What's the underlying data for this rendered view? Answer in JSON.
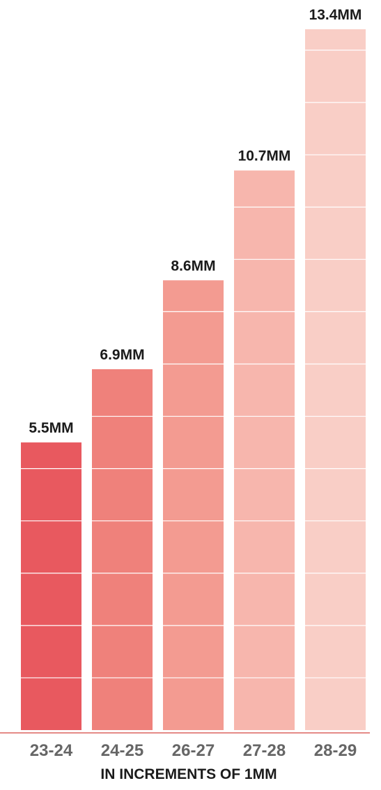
{
  "chart_data": {
    "type": "bar",
    "categories": [
      "23-24",
      "24-25",
      "26-27",
      "27-28",
      "28-29"
    ],
    "values": [
      5.5,
      6.9,
      8.6,
      10.7,
      13.4
    ],
    "value_labels": [
      "5.5MM",
      "6.9MM",
      "8.6MM",
      "10.7MM",
      "13.4MM"
    ],
    "xlabel": "IN INCREMENTS OF 1MM",
    "ylabel": "",
    "title": "",
    "ylim": [
      0,
      13.4
    ],
    "grid": false,
    "increment": 1,
    "colors": [
      "#e8595f",
      "#ef817b",
      "#f39b91",
      "#f7b6ad",
      "#f9cec6"
    ],
    "axis_color": "#e58a87",
    "segment_line_color": "#ffffff"
  }
}
